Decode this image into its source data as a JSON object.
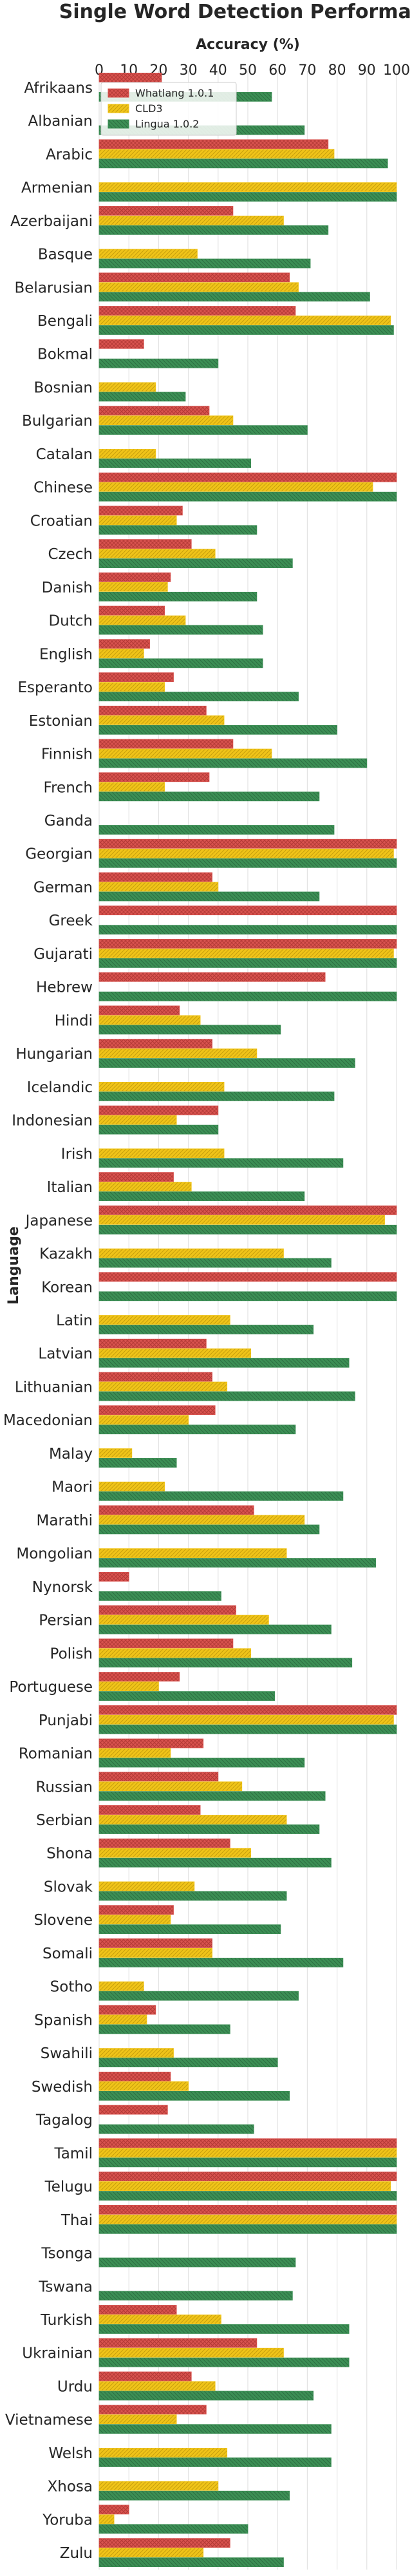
{
  "chart_data": {
    "type": "bar",
    "orientation": "horizontal",
    "title": "Single Word Detection Performance",
    "xlabel": "Accuracy (%)",
    "ylabel": "Language",
    "xlim": [
      0,
      100
    ],
    "xticks": [
      0,
      10,
      20,
      30,
      40,
      50,
      60,
      70,
      80,
      90,
      100
    ],
    "grid": "vertical",
    "legend_position": "top-left",
    "categories": [
      "Afrikaans",
      "Albanian",
      "Arabic",
      "Armenian",
      "Azerbaijani",
      "Basque",
      "Belarusian",
      "Bengali",
      "Bokmal",
      "Bosnian",
      "Bulgarian",
      "Catalan",
      "Chinese",
      "Croatian",
      "Czech",
      "Danish",
      "Dutch",
      "English",
      "Esperanto",
      "Estonian",
      "Finnish",
      "French",
      "Ganda",
      "Georgian",
      "German",
      "Greek",
      "Gujarati",
      "Hebrew",
      "Hindi",
      "Hungarian",
      "Icelandic",
      "Indonesian",
      "Irish",
      "Italian",
      "Japanese",
      "Kazakh",
      "Korean",
      "Latin",
      "Latvian",
      "Lithuanian",
      "Macedonian",
      "Malay",
      "Maori",
      "Marathi",
      "Mongolian",
      "Nynorsk",
      "Persian",
      "Polish",
      "Portuguese",
      "Punjabi",
      "Romanian",
      "Russian",
      "Serbian",
      "Shona",
      "Slovak",
      "Slovene",
      "Somali",
      "Sotho",
      "Spanish",
      "Swahili",
      "Swedish",
      "Tagalog",
      "Tamil",
      "Telugu",
      "Thai",
      "Tsonga",
      "Tswana",
      "Turkish",
      "Ukrainian",
      "Urdu",
      "Vietnamese",
      "Welsh",
      "Xhosa",
      "Yoruba",
      "Zulu"
    ],
    "series": [
      {
        "name": "Whatlang 1.0.1",
        "color": "#d9534f",
        "values": [
          21,
          null,
          77,
          null,
          45,
          null,
          64,
          66,
          15,
          null,
          37,
          null,
          100,
          28,
          31,
          24,
          22,
          17,
          25,
          36,
          45,
          37,
          null,
          100,
          38,
          100,
          100,
          76,
          27,
          38,
          null,
          40,
          null,
          25,
          100,
          null,
          100,
          null,
          36,
          38,
          39,
          null,
          null,
          52,
          null,
          10,
          46,
          45,
          27,
          100,
          35,
          40,
          34,
          44,
          null,
          25,
          38,
          null,
          19,
          null,
          24,
          23,
          100,
          100,
          100,
          null,
          null,
          26,
          53,
          31,
          36,
          null,
          null,
          10,
          44
        ]
      },
      {
        "name": "CLD3",
        "color": "#f0c419",
        "values": [
          null,
          null,
          79,
          100,
          62,
          33,
          67,
          98,
          null,
          19,
          45,
          19,
          92,
          26,
          39,
          23,
          29,
          15,
          22,
          42,
          58,
          22,
          null,
          99,
          40,
          null,
          99,
          null,
          34,
          53,
          42,
          26,
          42,
          31,
          96,
          62,
          null,
          44,
          51,
          43,
          30,
          11,
          22,
          69,
          63,
          null,
          57,
          51,
          20,
          99,
          24,
          48,
          63,
          51,
          32,
          24,
          38,
          15,
          16,
          25,
          30,
          null,
          100,
          98,
          100,
          null,
          null,
          41,
          62,
          39,
          26,
          43,
          40,
          5,
          35
        ]
      },
      {
        "name": "Lingua 1.0.2",
        "color": "#3c8f55",
        "values": [
          58,
          69,
          97,
          100,
          77,
          71,
          91,
          99,
          40,
          29,
          70,
          51,
          100,
          53,
          65,
          53,
          55,
          55,
          67,
          80,
          90,
          74,
          79,
          100,
          74,
          100,
          100,
          100,
          61,
          86,
          79,
          40,
          82,
          69,
          100,
          78,
          100,
          72,
          84,
          86,
          66,
          26,
          82,
          74,
          93,
          41,
          78,
          85,
          59,
          100,
          69,
          76,
          74,
          78,
          63,
          61,
          82,
          67,
          44,
          60,
          64,
          52,
          100,
          100,
          100,
          66,
          65,
          84,
          84,
          72,
          78,
          78,
          64,
          50,
          62
        ]
      }
    ]
  }
}
